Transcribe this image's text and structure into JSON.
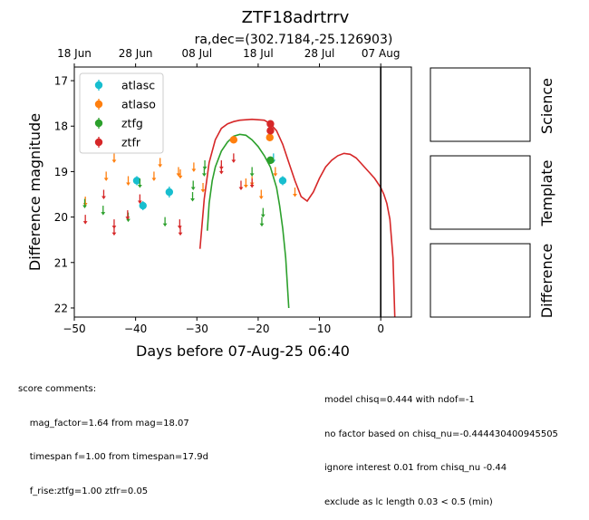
{
  "chart_data": {
    "type": "scatter",
    "title": "ZTF18adrtrrv",
    "subtitle": "ra,dec=(302.7184,-25.126903)",
    "xlabel": "Days before 07-Aug-25 06:40",
    "ylabel": "Difference magnitude",
    "xlim": [
      -50,
      5
    ],
    "ylim": [
      22.2,
      16.7
    ],
    "xticks": [
      -50,
      -40,
      -30,
      -20,
      -10,
      0
    ],
    "yticks": [
      17,
      18,
      19,
      20,
      21,
      22
    ],
    "top_axis_ticks": [
      {
        "label": "18 Jun",
        "x": -50
      },
      {
        "label": "28 Jun",
        "x": -40
      },
      {
        "label": "08 Jul",
        "x": -30
      },
      {
        "label": "18 Jul",
        "x": -20
      },
      {
        "label": "28 Jul",
        "x": -10
      },
      {
        "label": "07 Aug",
        "x": 0
      }
    ],
    "grid": false,
    "legend_position": "upper-left",
    "vline_x": 0,
    "series": [
      {
        "name": "atlasc",
        "color": "#17becf",
        "points": [
          {
            "x": -34.5,
            "y": 19.45,
            "err": 0.12
          },
          {
            "x": -39.8,
            "y": 19.2,
            "err": 0.1
          },
          {
            "x": -38.8,
            "y": 19.75,
            "err": 0.1
          },
          {
            "x": -16.0,
            "y": 19.2,
            "err": 0.1
          }
        ],
        "limits": [
          {
            "x": -17.5,
            "y": 18.7
          }
        ]
      },
      {
        "name": "atlaso",
        "color": "#ff7f0e",
        "points": [
          {
            "x": -24.0,
            "y": 18.3,
            "err": 0.05
          },
          {
            "x": -18.1,
            "y": 18.25,
            "err": 0.05
          }
        ],
        "limits": [
          {
            "x": -48.2,
            "y": 19.65
          },
          {
            "x": -44.8,
            "y": 19.1
          },
          {
            "x": -43.5,
            "y": 18.7
          },
          {
            "x": -41.2,
            "y": 19.2
          },
          {
            "x": -37.0,
            "y": 19.1
          },
          {
            "x": -36.0,
            "y": 18.8
          },
          {
            "x": -33.0,
            "y": 19.0
          },
          {
            "x": -32.7,
            "y": 19.05
          },
          {
            "x": -30.5,
            "y": 18.9
          },
          {
            "x": -29.0,
            "y": 19.35
          },
          {
            "x": -22.0,
            "y": 19.25
          },
          {
            "x": -21.0,
            "y": 19.2
          },
          {
            "x": -19.5,
            "y": 19.5
          },
          {
            "x": -17.2,
            "y": 19.0
          },
          {
            "x": -14.0,
            "y": 19.45
          }
        ]
      },
      {
        "name": "ztfg",
        "color": "#2ca02c",
        "points": [
          {
            "x": -18.0,
            "y": 18.75,
            "err": 0.08
          }
        ],
        "limits": [
          {
            "x": -48.3,
            "y": 19.7
          },
          {
            "x": -45.3,
            "y": 19.85
          },
          {
            "x": -41.2,
            "y": 20.0
          },
          {
            "x": -39.3,
            "y": 19.25
          },
          {
            "x": -35.2,
            "y": 20.1
          },
          {
            "x": -30.7,
            "y": 19.55
          },
          {
            "x": -30.6,
            "y": 19.3
          },
          {
            "x": -28.8,
            "y": 19.0
          },
          {
            "x": -28.7,
            "y": 18.85
          },
          {
            "x": -21.0,
            "y": 19.0
          },
          {
            "x": -19.2,
            "y": 19.9
          },
          {
            "x": -19.4,
            "y": 20.1
          }
        ]
      },
      {
        "name": "ztfr",
        "color": "#d62728",
        "points": [
          {
            "x": -18.0,
            "y": 17.95,
            "err": 0.08
          },
          {
            "x": -18.0,
            "y": 18.1,
            "err": 0.08
          }
        ],
        "limits": [
          {
            "x": -48.2,
            "y": 20.05
          },
          {
            "x": -45.2,
            "y": 19.5
          },
          {
            "x": -43.5,
            "y": 20.15
          },
          {
            "x": -43.5,
            "y": 20.3
          },
          {
            "x": -41.3,
            "y": 19.95
          },
          {
            "x": -39.3,
            "y": 19.6
          },
          {
            "x": -32.8,
            "y": 20.15
          },
          {
            "x": -32.7,
            "y": 20.3
          },
          {
            "x": -26.0,
            "y": 18.85
          },
          {
            "x": -26.0,
            "y": 18.95
          },
          {
            "x": -24.0,
            "y": 18.7
          },
          {
            "x": -22.8,
            "y": 19.3
          },
          {
            "x": -21.0,
            "y": 19.25
          },
          {
            "x": -18.2,
            "y": 18.05
          }
        ]
      }
    ],
    "model_curves": [
      {
        "color": "#d62728",
        "x": [
          -29.5,
          -28.8,
          -28.0,
          -27.0,
          -26.0,
          -25.0,
          -24.0,
          -23.0,
          -21.0,
          -19.0,
          -18.0,
          -17.0,
          -16.0,
          -15.0,
          -14.0,
          -13.0,
          -12.0,
          -11.0,
          -10.0,
          -9.0,
          -8.0,
          -7.0,
          -6.0,
          -5.0,
          -4.0,
          -3.0,
          -2.0,
          -1.0,
          0.0,
          0.5,
          1.0,
          1.5,
          2.0,
          2.3
        ],
        "y": [
          20.7,
          19.6,
          18.8,
          18.3,
          18.05,
          17.95,
          17.9,
          17.87,
          17.85,
          17.87,
          17.95,
          18.1,
          18.4,
          18.8,
          19.2,
          19.55,
          19.65,
          19.45,
          19.15,
          18.9,
          18.75,
          18.65,
          18.6,
          18.62,
          18.7,
          18.85,
          19.0,
          19.15,
          19.35,
          19.5,
          19.7,
          20.05,
          20.9,
          22.2
        ]
      },
      {
        "color": "#2ca02c",
        "x": [
          -28.3,
          -28.0,
          -27.5,
          -27.0,
          -26.0,
          -25.0,
          -24.0,
          -23.0,
          -22.0,
          -21.0,
          -20.0,
          -19.0,
          -18.0,
          -17.0,
          -16.5,
          -16.0,
          -15.5,
          -15.0
        ],
        "y": [
          20.3,
          19.7,
          19.2,
          18.9,
          18.55,
          18.35,
          18.22,
          18.18,
          18.2,
          18.3,
          18.45,
          18.65,
          18.9,
          19.35,
          19.75,
          20.25,
          20.9,
          22.0
        ]
      }
    ]
  },
  "panels": {
    "science": "Science",
    "template": "Template",
    "difference": "Difference"
  },
  "notes": {
    "left": [
      "score comments:",
      "    mag_factor=1.64 from mag=18.07",
      "    timespan f=1.00 from timespan=17.9d",
      "    f_rise:ztfg=1.00 ztfr=0.05"
    ],
    "right": [
      "model chisq=0.444 with ndof=-1",
      "no factor based on chisq_nu=-0.444430400945505",
      "ignore interest 0.01 from chisq_nu -0.44",
      "exclude as lc length 0.03 < 0.5 (min)"
    ]
  }
}
